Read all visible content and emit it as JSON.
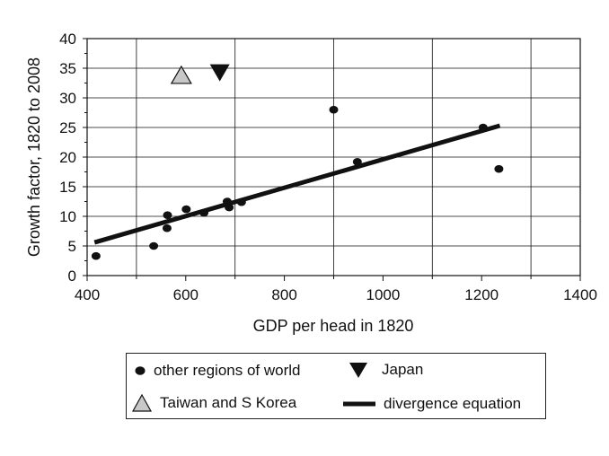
{
  "chart_data": {
    "type": "scatter",
    "title": "",
    "xlabel": "GDP per head in 1820",
    "ylabel": "Growth factor, 1820 to 2008",
    "xlim": [
      400,
      1400
    ],
    "ylim": [
      0,
      40
    ],
    "xticks": [
      400,
      600,
      800,
      1000,
      1200,
      1400
    ],
    "yticks": [
      0,
      5,
      10,
      15,
      20,
      25,
      30,
      35,
      40
    ],
    "grid": true,
    "legend_position": "bottom",
    "series": [
      {
        "name": "other regions of world",
        "marker": "dot",
        "color": "#111111",
        "points": [
          {
            "x": 418,
            "y": 3.3
          },
          {
            "x": 535,
            "y": 5.0
          },
          {
            "x": 562,
            "y": 8.0
          },
          {
            "x": 563,
            "y": 10.2
          },
          {
            "x": 601,
            "y": 11.2
          },
          {
            "x": 637,
            "y": 10.6
          },
          {
            "x": 684,
            "y": 12.5
          },
          {
            "x": 688,
            "y": 11.5
          },
          {
            "x": 713,
            "y": 12.4
          },
          {
            "x": 900,
            "y": 28.0
          },
          {
            "x": 948,
            "y": 19.2
          },
          {
            "x": 1203,
            "y": 25.0
          },
          {
            "x": 1235,
            "y": 18.0
          }
        ]
      },
      {
        "name": "Japan",
        "marker": "triangle-down",
        "color": "#111111",
        "points": [
          {
            "x": 669,
            "y": 34.3
          }
        ]
      },
      {
        "name": "Taiwan and S Korea",
        "marker": "triangle-up",
        "color": "#c8c8c8",
        "points": [
          {
            "x": 591,
            "y": 33.8
          }
        ]
      },
      {
        "name": "divergence equation",
        "marker": "line",
        "color": "#111111",
        "points": [
          {
            "x": 415,
            "y": 5.6
          },
          {
            "x": 1237,
            "y": 25.3
          }
        ]
      }
    ]
  },
  "legend": {
    "items": [
      {
        "label": "other regions of world"
      },
      {
        "label": "Japan"
      },
      {
        "label": "Taiwan and S Korea"
      },
      {
        "label": "divergence equation"
      }
    ]
  }
}
